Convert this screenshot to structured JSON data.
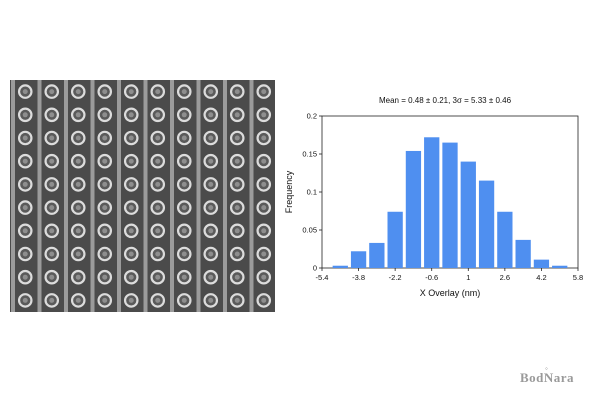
{
  "micrograph": {
    "columns": 10,
    "rows": 10,
    "background_color": "#4b4b4b",
    "line_color": "#a9a9a9",
    "dot_color": "#dcdcdc"
  },
  "chart_data": {
    "type": "bar",
    "title": "Mean = 0.48 ± 0.21,    3σ = 5.33 ± 0.46",
    "xlabel": "X Overlay (nm)",
    "ylabel": "Frequency",
    "bar_color": "#4f8ff0",
    "xlim": [
      -5.4,
      5.8
    ],
    "ylim": [
      0,
      0.2
    ],
    "x_ticks": [
      -5.4,
      -3.8,
      -2.2,
      -0.6,
      1,
      2.6,
      4.2,
      5.8
    ],
    "x_tick_labels": [
      "-5.4",
      "-3.8",
      "-2.2",
      "-0.6",
      "1",
      "2.6",
      "4.2",
      "5.8"
    ],
    "y_ticks": [
      0,
      0.05,
      0.1,
      0.15,
      0.2
    ],
    "y_tick_labels": [
      "0",
      "0.05",
      "0.1",
      "0.15",
      "0.2"
    ],
    "bin_width": 0.8,
    "x": [
      -4.6,
      -3.8,
      -3.0,
      -2.2,
      -1.4,
      -0.6,
      0.2,
      1.0,
      1.8,
      2.6,
      3.4,
      4.2,
      5.0
    ],
    "values": [
      0.003,
      0.022,
      0.033,
      0.074,
      0.154,
      0.172,
      0.165,
      0.14,
      0.115,
      0.074,
      0.037,
      0.011,
      0.003
    ]
  },
  "watermark": {
    "text": "BodNara"
  }
}
